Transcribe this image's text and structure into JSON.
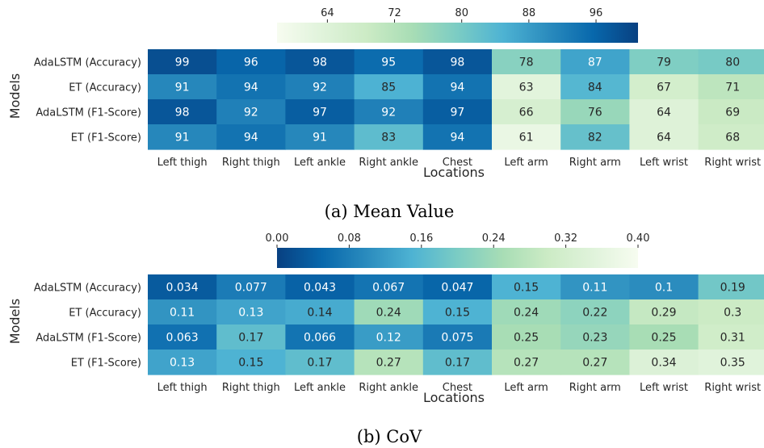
{
  "chart_data": [
    {
      "type": "heatmap",
      "caption": "(a) Mean Value",
      "xlabel": "Locations",
      "ylabel": "Models",
      "x_categories": [
        "Left thigh",
        "Right thigh",
        "Left ankle",
        "Right ankle",
        "Chest",
        "Left arm",
        "Right arm",
        "Left wrist",
        "Right wrist"
      ],
      "y_categories": [
        "AdaLSTM (Accuracy)",
        "ET (Accuracy)",
        "AdaLSTM (F1-Score)",
        "ET (F1-Score)"
      ],
      "values": [
        [
          99,
          96,
          98,
          95,
          98,
          78,
          87,
          79,
          80
        ],
        [
          91,
          94,
          92,
          85,
          94,
          63,
          84,
          67,
          71
        ],
        [
          98,
          92,
          97,
          92,
          97,
          66,
          76,
          64,
          69
        ],
        [
          91,
          94,
          91,
          83,
          94,
          61,
          82,
          64,
          68
        ]
      ],
      "labels": [
        [
          "99",
          "96",
          "98",
          "95",
          "98",
          "78",
          "87",
          "79",
          "80"
        ],
        [
          "91",
          "94",
          "92",
          "85",
          "94",
          "63",
          "84",
          "67",
          "71"
        ],
        [
          "98",
          "92",
          "97",
          "92",
          "97",
          "66",
          "76",
          "64",
          "69"
        ],
        [
          "91",
          "94",
          "91",
          "83",
          "94",
          "61",
          "82",
          "64",
          "68"
        ]
      ],
      "colorbar": {
        "range": [
          58,
          101
        ],
        "ticks": [
          64,
          72,
          80,
          88,
          96
        ],
        "tick_labels": [
          "64",
          "72",
          "80",
          "88",
          "96"
        ],
        "reversed": false
      },
      "colormap": "GnBu",
      "colorbar_position": "top"
    },
    {
      "type": "heatmap",
      "caption": "(b) CoV",
      "xlabel": "Locations",
      "ylabel": "Models",
      "x_categories": [
        "Left thigh",
        "Right thigh",
        "Left ankle",
        "Right ankle",
        "Chest",
        "Left arm",
        "Right arm",
        "Left wrist",
        "Right wrist"
      ],
      "y_categories": [
        "AdaLSTM (Accuracy)",
        "ET (Accuracy)",
        "AdaLSTM (F1-Score)",
        "ET (F1-Score)"
      ],
      "values": [
        [
          0.034,
          0.077,
          0.043,
          0.067,
          0.047,
          0.15,
          0.11,
          0.1,
          0.19
        ],
        [
          0.11,
          0.13,
          0.14,
          0.24,
          0.15,
          0.24,
          0.22,
          0.29,
          0.3
        ],
        [
          0.063,
          0.17,
          0.066,
          0.12,
          0.075,
          0.25,
          0.23,
          0.25,
          0.31
        ],
        [
          0.13,
          0.15,
          0.17,
          0.27,
          0.17,
          0.27,
          0.27,
          0.34,
          0.35
        ]
      ],
      "labels": [
        [
          "0.034",
          "0.077",
          "0.043",
          "0.067",
          "0.047",
          "0.15",
          "0.11",
          "0.1",
          "0.19"
        ],
        [
          "0.11",
          "0.13",
          "0.14",
          "0.24",
          "0.15",
          "0.24",
          "0.22",
          "0.29",
          "0.3"
        ],
        [
          "0.063",
          "0.17",
          "0.066",
          "0.12",
          "0.075",
          "0.25",
          "0.23",
          "0.25",
          "0.31"
        ],
        [
          "0.13",
          "0.15",
          "0.17",
          "0.27",
          "0.17",
          "0.27",
          "0.27",
          "0.34",
          "0.35"
        ]
      ],
      "colorbar": {
        "range": [
          0.0,
          0.4
        ],
        "ticks": [
          0.0,
          0.08,
          0.16,
          0.24,
          0.32,
          0.4
        ],
        "tick_labels": [
          "0.00",
          "0.08",
          "0.16",
          "0.24",
          "0.32",
          "0.40"
        ],
        "reversed": true
      },
      "colormap": "GnBu_r",
      "colorbar_position": "top"
    }
  ],
  "colormap_stops": [
    "#f7fcf0",
    "#e0f3db",
    "#ccebc5",
    "#a8ddb5",
    "#7bccc4",
    "#4eb3d3",
    "#2b8cbe",
    "#0868ac",
    "#084081"
  ]
}
